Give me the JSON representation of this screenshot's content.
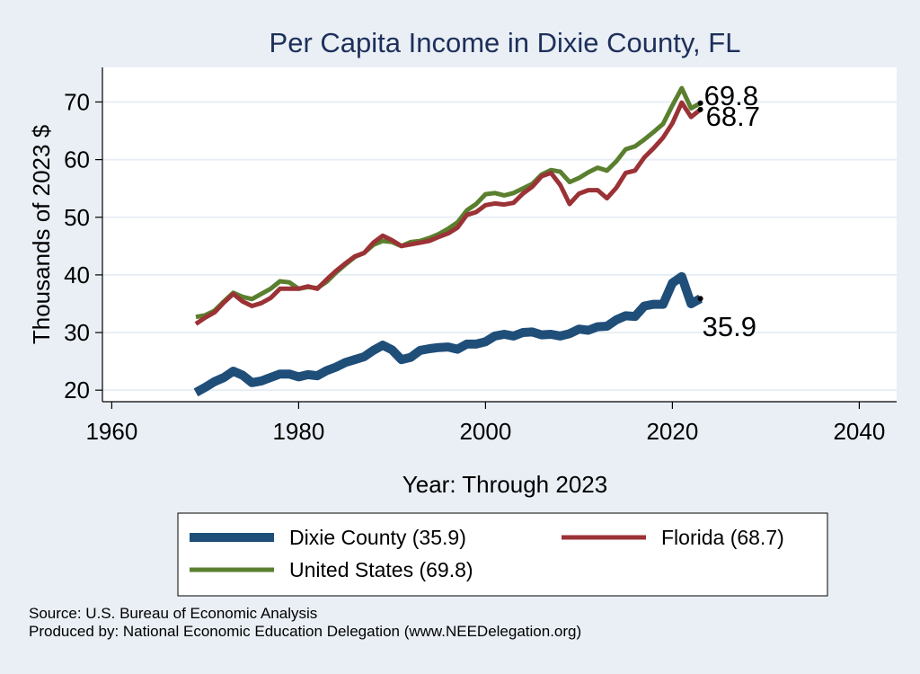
{
  "chart_data": {
    "type": "line",
    "title": "Per Capita Income in Dixie County, FL",
    "xlabel": "Year: Through 2023",
    "ylabel": "Thousands of 2023 $",
    "xlim": [
      1959,
      2044
    ],
    "ylim": [
      18,
      76
    ],
    "xticks": [
      1960,
      1980,
      2000,
      2020,
      2040
    ],
    "yticks": [
      20,
      30,
      40,
      50,
      60,
      70
    ],
    "grid": true,
    "legend_position": "bottom",
    "x": [
      1969,
      1970,
      1971,
      1972,
      1973,
      1974,
      1975,
      1976,
      1977,
      1978,
      1979,
      1980,
      1981,
      1982,
      1983,
      1984,
      1985,
      1986,
      1987,
      1988,
      1989,
      1990,
      1991,
      1992,
      1993,
      1994,
      1995,
      1996,
      1997,
      1998,
      1999,
      2000,
      2001,
      2002,
      2003,
      2004,
      2005,
      2006,
      2007,
      2008,
      2009,
      2010,
      2011,
      2012,
      2013,
      2014,
      2015,
      2016,
      2017,
      2018,
      2019,
      2020,
      2021,
      2022,
      2023
    ],
    "series": [
      {
        "name": "Dixie County (35.9)",
        "color": "#1f4e79",
        "line_width": 10,
        "end_label": "35.9",
        "values": [
          19.6,
          20.5,
          21.5,
          22.2,
          23.3,
          22.6,
          21.3,
          21.6,
          22.2,
          22.8,
          22.8,
          22.3,
          22.7,
          22.5,
          23.4,
          24.0,
          24.8,
          25.3,
          25.8,
          26.9,
          27.8,
          27.0,
          25.3,
          25.7,
          26.9,
          27.2,
          27.4,
          27.5,
          27.1,
          28.0,
          28.0,
          28.4,
          29.4,
          29.7,
          29.4,
          30.0,
          30.1,
          29.6,
          29.7,
          29.4,
          29.8,
          30.6,
          30.4,
          31.0,
          31.1,
          32.2,
          32.9,
          32.8,
          34.6,
          34.9,
          34.9,
          38.6,
          39.7,
          35.0,
          35.9
        ]
      },
      {
        "name": "Florida (68.7)",
        "color": "#9b3236",
        "line_width": 5,
        "end_label": "68.7",
        "values": [
          31.5,
          32.6,
          33.5,
          35.2,
          36.7,
          35.4,
          34.6,
          35.1,
          36.0,
          37.6,
          37.6,
          37.6,
          38.0,
          37.6,
          39.2,
          40.7,
          42.0,
          43.2,
          43.8,
          45.6,
          46.8,
          46.0,
          45.0,
          45.3,
          45.6,
          45.9,
          46.6,
          47.2,
          48.2,
          50.4,
          50.9,
          52.1,
          52.4,
          52.2,
          52.5,
          54.1,
          55.3,
          57.1,
          57.7,
          55.6,
          52.3,
          54.1,
          54.7,
          54.7,
          53.3,
          55.1,
          57.7,
          58.1,
          60.4,
          62.0,
          63.8,
          66.3,
          69.9,
          67.4,
          68.7
        ]
      },
      {
        "name": "United States (69.8)",
        "color": "#5a7f2e",
        "line_width": 5,
        "end_label": "69.8",
        "values": [
          32.7,
          33.0,
          33.8,
          35.4,
          36.9,
          36.2,
          35.8,
          36.7,
          37.6,
          38.9,
          38.7,
          37.6,
          37.9,
          37.7,
          38.8,
          40.4,
          41.8,
          43.1,
          43.8,
          45.2,
          45.9,
          45.7,
          45.0,
          45.7,
          45.9,
          46.4,
          47.1,
          48.0,
          49.1,
          51.2,
          52.3,
          54.0,
          54.2,
          53.8,
          54.2,
          55.0,
          55.8,
          57.4,
          58.2,
          57.9,
          56.1,
          56.8,
          57.8,
          58.6,
          58.1,
          59.7,
          61.8,
          62.3,
          63.5,
          64.8,
          66.2,
          69.4,
          72.4,
          68.9,
          69.8
        ]
      }
    ]
  },
  "legend": {
    "items": [
      {
        "label": "Dixie County (35.9)",
        "color": "#1f4e79"
      },
      {
        "label": "Florida (68.7)",
        "color": "#9b3236"
      },
      {
        "label": "United States (69.8)",
        "color": "#5a7f2e"
      }
    ]
  },
  "notes": {
    "source": "Source: U.S. Bureau of Economic Analysis",
    "produced_by": "Produced by: National Economic Education Delegation (www.NEEDelegation.org)"
  }
}
